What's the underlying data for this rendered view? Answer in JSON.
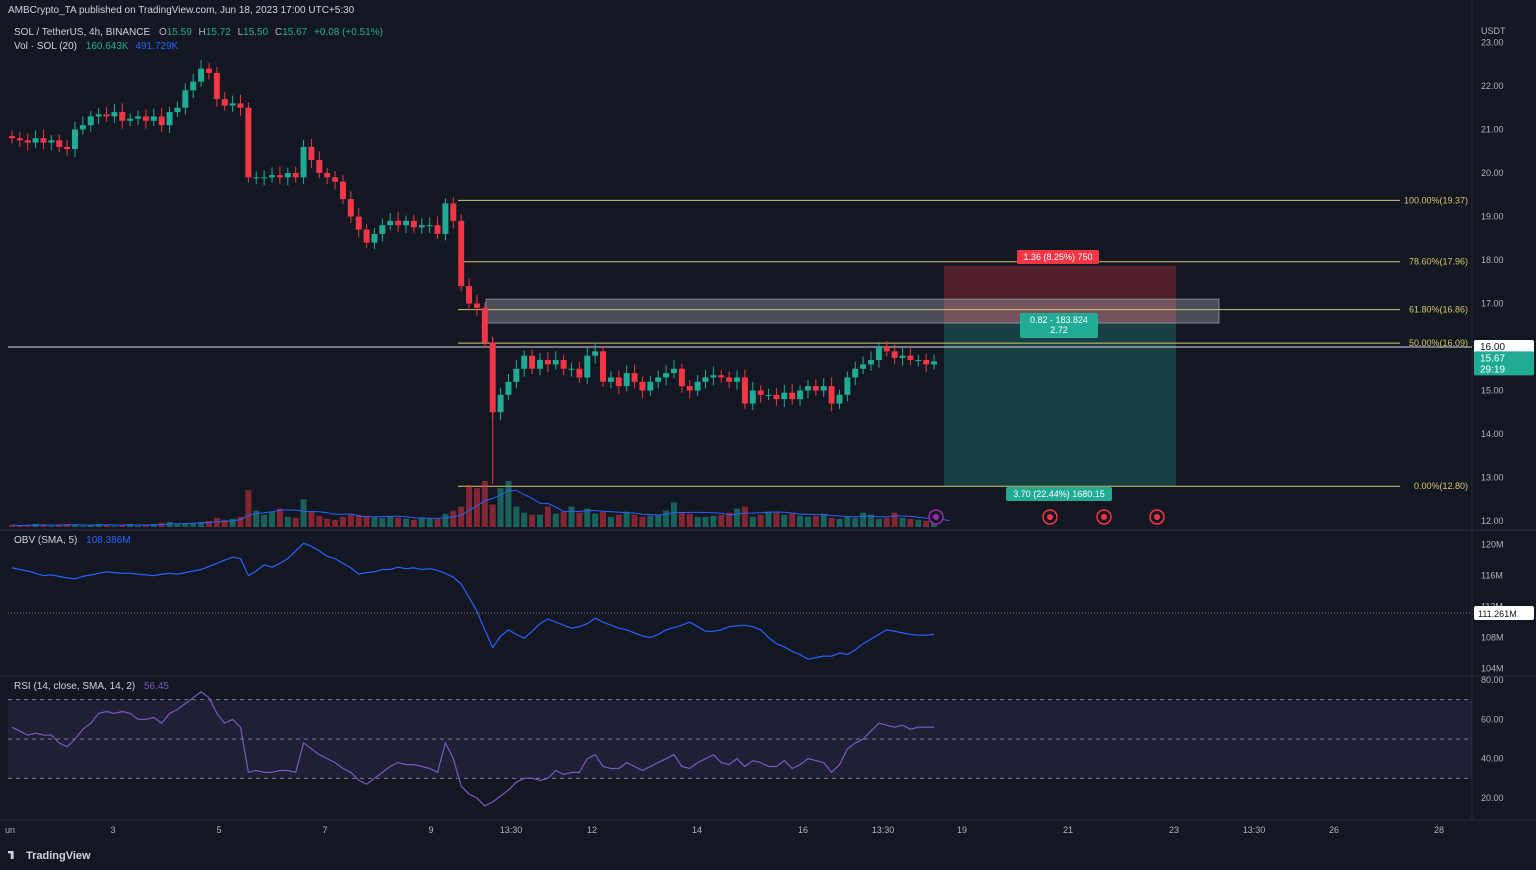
{
  "header": {
    "published": "AMBCrypto_TA published on TradingView.com, Jun 18, 2023 17:00 UTC+5:30",
    "symbol": "SOL / TetherUS, 4h, BINANCE",
    "o_label": "O",
    "o": "15.59",
    "h_label": "H",
    "h": "15.72",
    "l_label": "L",
    "l": "15.50",
    "c_label": "C",
    "c": "15.67",
    "change": "+0.08 (+0.51%)",
    "vol_label": "Vol · SOL (20)",
    "vol_a": "160.643K",
    "vol_b": "491.729K",
    "obv_label": "OBV (SMA, 5)",
    "obv_val": "108.386M",
    "rsi_label": "RSI (14, close, SMA, 14, 2)",
    "rsi_val": "56.45",
    "currency": "USDT",
    "brand": "TradingView"
  },
  "colors": {
    "background": "#131722",
    "up": "#22ab94",
    "down": "#f23645",
    "fib": "#d8c66e",
    "obv": "#2962ff",
    "rsi": "#7e57c2",
    "text": "#b2b5be"
  },
  "chart_data": [
    {
      "type": "candlestick",
      "title": "SOL / TetherUS, 4h, BINANCE",
      "y_axis": {
        "ticks": [
          "12.00",
          "13.00",
          "14.00",
          "15.00",
          "16.00",
          "17.00",
          "18.00",
          "19.00",
          "20.00",
          "21.00",
          "22.00",
          "23.00"
        ],
        "range": [
          11.85,
          23.4
        ]
      },
      "x_axis": {
        "ticks": [
          "un",
          "3",
          "5",
          "7",
          "9",
          "13:30",
          "12",
          "14",
          "16",
          "13:30",
          "19",
          "21",
          "23",
          "13:30",
          "26",
          "28"
        ]
      },
      "closes": [
        20.8,
        20.75,
        20.7,
        20.8,
        20.7,
        20.75,
        20.6,
        20.55,
        21.0,
        21.1,
        21.3,
        21.35,
        21.3,
        21.4,
        21.2,
        21.25,
        21.3,
        21.2,
        21.3,
        21.1,
        21.4,
        21.5,
        21.9,
        22.1,
        22.4,
        22.3,
        21.7,
        21.55,
        21.6,
        21.5,
        19.9,
        19.9,
        19.9,
        19.95,
        19.9,
        20.0,
        19.9,
        20.6,
        20.3,
        20.0,
        19.9,
        19.8,
        19.4,
        19.0,
        18.7,
        18.4,
        18.6,
        18.8,
        18.9,
        18.8,
        18.9,
        18.75,
        18.8,
        18.8,
        18.6,
        19.3,
        18.9,
        17.4,
        17.0,
        16.9,
        16.1,
        14.5,
        14.9,
        15.2,
        15.5,
        15.8,
        15.5,
        15.7,
        15.6,
        15.7,
        15.5,
        15.5,
        15.3,
        15.8,
        15.9,
        15.2,
        15.3,
        15.1,
        15.4,
        15.2,
        15.0,
        15.2,
        15.3,
        15.4,
        15.5,
        15.1,
        15.0,
        15.2,
        15.3,
        15.35,
        15.3,
        15.2,
        15.3,
        14.7,
        15.0,
        14.9,
        14.9,
        14.8,
        14.95,
        14.8,
        15.0,
        15.1,
        15.0,
        15.1,
        14.7,
        14.9,
        15.3,
        15.5,
        15.6,
        15.7,
        16.0,
        15.9,
        15.75,
        15.8,
        15.7,
        15.7,
        15.6,
        15.67
      ],
      "fib_levels": [
        {
          "label": "100.00%(19.37)",
          "value": 19.37
        },
        {
          "label": "78.60%(17.96)",
          "value": 17.96
        },
        {
          "label": "61.80%(16.86)",
          "value": 16.86
        },
        {
          "label": "50.00%(16.09)",
          "value": 16.09
        },
        {
          "label": "0.00%(12.80)",
          "value": 12.8
        }
      ],
      "horizontal_line": 16.0,
      "price_tag": "16.00",
      "last_price": "15.67",
      "countdown": "29:19",
      "supply_zone": [
        16.55,
        17.1
      ],
      "short_position": {
        "entry": 16.55,
        "stop": 17.87,
        "target": 12.8,
        "stop_label": "1.36 (8.25%) 750",
        "mid_label_1": "0.82 - 183.824",
        "mid_label_2": "2.72",
        "target_label": "3.70 (22.44%) 1680.15"
      }
    },
    {
      "type": "bar",
      "title": "Vol · SOL (20)",
      "volume_relative": [
        2,
        1,
        2,
        3,
        2,
        1,
        2,
        3,
        2,
        1,
        2,
        3,
        2,
        1,
        2,
        3,
        1,
        2,
        3,
        4,
        5,
        3,
        4,
        4,
        5,
        6,
        9,
        7,
        8,
        10,
        36,
        16,
        12,
        15,
        18,
        10,
        9,
        27,
        15,
        11,
        8,
        7,
        10,
        12,
        12,
        11,
        10,
        9,
        10,
        9,
        8,
        7,
        9,
        8,
        8,
        13,
        16,
        20,
        41,
        38,
        45,
        22,
        38,
        45,
        20,
        14,
        12,
        12,
        20,
        13,
        15,
        20,
        14,
        18,
        13,
        15,
        10,
        12,
        15,
        12,
        10,
        11,
        12,
        16,
        24,
        14,
        13,
        10,
        10,
        11,
        12,
        14,
        18,
        20,
        10,
        12,
        15,
        14,
        12,
        13,
        11,
        10,
        11,
        13,
        9,
        8,
        10,
        9,
        14,
        12,
        8,
        9,
        14,
        9,
        8,
        7,
        6,
        5,
        4,
        4
      ]
    },
    {
      "type": "line",
      "title": "OBV (SMA, 5)",
      "y_axis": {
        "ticks": [
          "104M",
          "108M",
          "112M",
          "116M",
          "120M"
        ],
        "range": [
          103.8,
          121.0
        ]
      },
      "current_tag": "111.261M",
      "values": [
        117.0,
        116.8,
        116.6,
        116.3,
        116.0,
        116.1,
        115.9,
        115.7,
        115.6,
        115.9,
        116.1,
        116.3,
        116.5,
        116.4,
        116.3,
        116.3,
        116.2,
        116.1,
        116.0,
        116.2,
        116.3,
        116.2,
        116.4,
        116.6,
        116.8,
        117.2,
        117.6,
        118.0,
        118.4,
        118.2,
        116.0,
        116.6,
        117.4,
        117.1,
        117.6,
        118.2,
        119.2,
        120.2,
        119.8,
        119.2,
        118.5,
        118.2,
        117.6,
        117.0,
        116.2,
        116.4,
        116.5,
        116.8,
        116.8,
        117.1,
        116.9,
        117.0,
        116.8,
        116.9,
        116.7,
        116.3,
        115.8,
        114.9,
        113.2,
        111.4,
        109.0,
        106.7,
        108.2,
        109.0,
        108.4,
        107.9,
        108.8,
        109.8,
        110.4,
        110.0,
        109.6,
        109.2,
        109.4,
        109.8,
        110.5,
        110.0,
        109.6,
        109.2,
        109.0,
        108.6,
        108.2,
        108.0,
        108.4,
        109.0,
        109.3,
        109.6,
        110.0,
        109.4,
        108.8,
        108.8,
        109.0,
        109.4,
        109.5,
        109.6,
        109.4,
        109.0,
        108.0,
        107.2,
        106.8,
        106.2,
        105.8,
        105.2,
        105.4,
        105.6,
        105.6,
        106.0,
        105.8,
        106.4,
        107.2,
        107.8,
        108.4,
        109.0,
        108.8,
        108.6,
        108.4,
        108.3,
        108.3,
        108.4
      ]
    },
    {
      "type": "line",
      "title": "RSI (14, close, SMA, 14, 2)",
      "y_axis": {
        "ticks": [
          "20.00",
          "40.00",
          "60.00",
          "80.00"
        ],
        "range": [
          15,
          80
        ]
      },
      "bands": [
        30,
        50,
        70
      ],
      "values": [
        56,
        54,
        52,
        53,
        52,
        52,
        48,
        46,
        50,
        55,
        58,
        63,
        64,
        63,
        64,
        63,
        60,
        60,
        61,
        58,
        63,
        65,
        68,
        71,
        74,
        71,
        63,
        58,
        60,
        56,
        33,
        34,
        33,
        33,
        34,
        34,
        33,
        48,
        45,
        42,
        40,
        38,
        35,
        33,
        29,
        27,
        30,
        33,
        36,
        38,
        37,
        37,
        36,
        35,
        33,
        48,
        40,
        26,
        22,
        20,
        16,
        18,
        21,
        24,
        28,
        30,
        30,
        29,
        30,
        34,
        32,
        33,
        33,
        40,
        42,
        36,
        35,
        35,
        38,
        36,
        34,
        36,
        38,
        40,
        42,
        36,
        35,
        38,
        40,
        42,
        38,
        37,
        40,
        36,
        39,
        38,
        36,
        36,
        39,
        35,
        37,
        40,
        39,
        38,
        33,
        37,
        45,
        48,
        50,
        54,
        58,
        57,
        56,
        57,
        55,
        56,
        56,
        56
      ]
    }
  ]
}
